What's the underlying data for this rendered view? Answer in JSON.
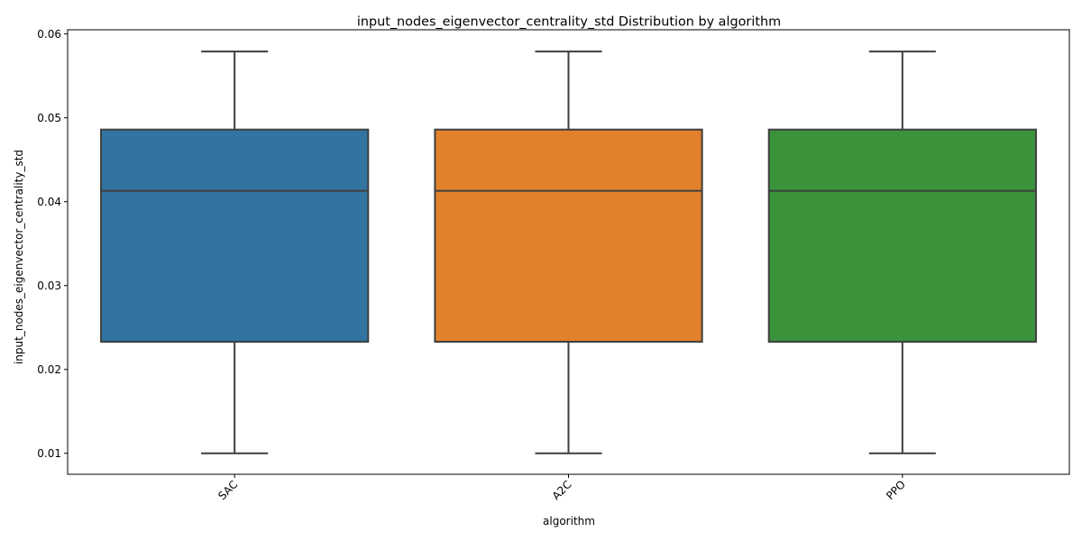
{
  "chart_data": {
    "type": "box",
    "title": "input_nodes_eigenvector_centrality_std Distribution by algorithm",
    "xlabel": "algorithm",
    "ylabel": "input_nodes_eigenvector_centrality_std",
    "ylim": [
      0.0075,
      0.0605
    ],
    "yticks": [
      "0.01",
      "0.02",
      "0.03",
      "0.04",
      "0.05",
      "0.06"
    ],
    "ytick_values": [
      0.01,
      0.02,
      0.03,
      0.04,
      0.05,
      0.06
    ],
    "categories": [
      "SAC",
      "A2C",
      "PPO"
    ],
    "xtick_rotation_deg": 45,
    "grid": false,
    "series": [
      {
        "category": "SAC",
        "color": "#3274a1",
        "whisker_low": 0.01,
        "q1": 0.0233,
        "median": 0.0413,
        "q3": 0.0486,
        "whisker_high": 0.0579
      },
      {
        "category": "A2C",
        "color": "#e1812c",
        "whisker_low": 0.01,
        "q1": 0.0233,
        "median": 0.0413,
        "q3": 0.0486,
        "whisker_high": 0.0579
      },
      {
        "category": "PPO",
        "color": "#3a923a",
        "whisker_low": 0.01,
        "q1": 0.0233,
        "median": 0.0413,
        "q3": 0.0486,
        "whisker_high": 0.0579
      }
    ],
    "line_color": "#3f3f3f"
  }
}
